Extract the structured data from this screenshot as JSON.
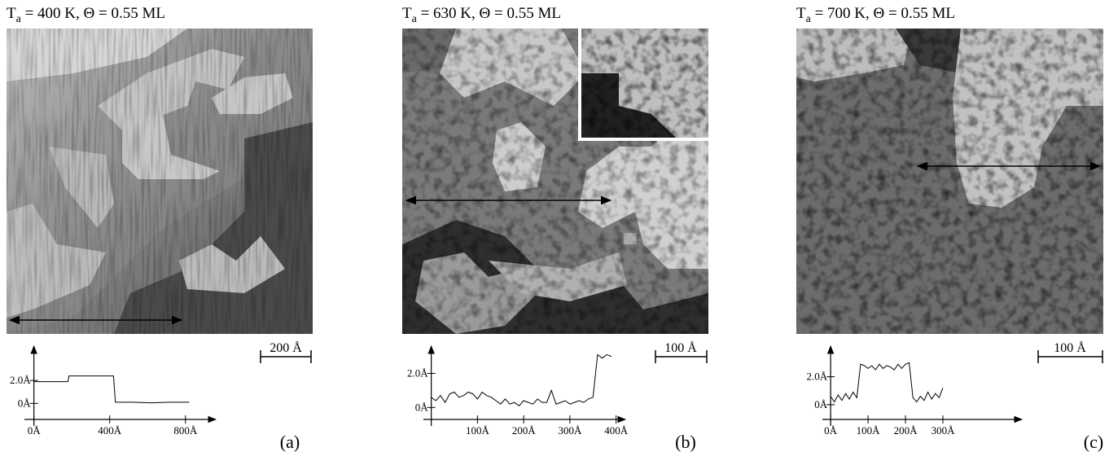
{
  "panels": [
    {
      "title": {
        "main": "T",
        "sub": "a",
        "rest": " = 400 K,   Θ = 0.55 ML"
      },
      "scale_bar": "200 Å",
      "label": "(a)",
      "profile": {
        "type": "line",
        "xlim": [
          -50,
          960
        ],
        "ylim": [
          -1.4,
          5
        ],
        "xticks": [
          {
            "value": 0,
            "label": "0Å"
          },
          {
            "value": 400,
            "label": "400Å"
          },
          {
            "value": 800,
            "label": "800Å"
          }
        ],
        "yticks": [
          {
            "value": 0,
            "label": "0Å"
          },
          {
            "value": 2,
            "label": "2.0Å"
          }
        ],
        "x": [
          0,
          60,
          120,
          180,
          185,
          250,
          320,
          420,
          430,
          520,
          620,
          720,
          820
        ],
        "values": [
          1.9,
          1.9,
          1.9,
          1.9,
          2.4,
          2.4,
          2.4,
          2.4,
          0.1,
          0.1,
          0.05,
          0.1,
          0.1
        ]
      }
    },
    {
      "title": {
        "main": "T",
        "sub": "a",
        "rest": " = 630 K,   Θ = 0.55 ML"
      },
      "scale_bar": "100 Å",
      "label": "(b)",
      "profile": {
        "type": "line",
        "xlim": [
          -17,
          420
        ],
        "ylim": [
          -0.7,
          3.6
        ],
        "xticks": [
          {
            "value": 100,
            "label": "100Å"
          },
          {
            "value": 200,
            "label": "200Å"
          },
          {
            "value": 300,
            "label": "300Å"
          },
          {
            "value": 400,
            "label": "400Å"
          }
        ],
        "yticks": [
          {
            "value": 0,
            "label": "0Å"
          },
          {
            "value": 2,
            "label": "2.0Å"
          }
        ],
        "x": [
          0,
          10,
          20,
          30,
          40,
          50,
          60,
          70,
          80,
          90,
          100,
          110,
          120,
          130,
          140,
          150,
          160,
          170,
          180,
          190,
          200,
          210,
          220,
          230,
          240,
          250,
          260,
          270,
          280,
          290,
          300,
          310,
          320,
          330,
          340,
          350,
          360,
          370,
          380,
          390
        ],
        "values": [
          0.6,
          0.4,
          0.7,
          0.3,
          0.8,
          0.9,
          0.6,
          0.7,
          0.9,
          0.8,
          0.5,
          0.9,
          0.7,
          0.6,
          0.4,
          0.2,
          0.5,
          0.2,
          0.3,
          0.1,
          0.4,
          0.3,
          0.2,
          0.5,
          0.3,
          0.3,
          1.0,
          0.2,
          0.3,
          0.4,
          0.2,
          0.3,
          0.4,
          0.3,
          0.5,
          0.6,
          3.1,
          2.9,
          3.1,
          3.0
        ]
      }
    },
    {
      "title": {
        "main": "T",
        "sub": "a",
        "rest": " = 700 K,   Θ = 0.55 ML"
      },
      "scale_bar": "100 Å",
      "label": "(c)",
      "profile": {
        "type": "line",
        "xlim": [
          -22,
          511
        ],
        "ylim": [
          -1.06,
          4.2
        ],
        "xticks": [
          {
            "value": 0,
            "label": "0Å"
          },
          {
            "value": 100,
            "label": "100Å"
          },
          {
            "value": 200,
            "label": "200Å"
          },
          {
            "value": 300,
            "label": "300Å"
          }
        ],
        "yticks": [
          {
            "value": 0,
            "label": "0Å"
          },
          {
            "value": 2,
            "label": "2.0Å"
          }
        ],
        "x": [
          0,
          10,
          20,
          30,
          40,
          50,
          60,
          70,
          80,
          90,
          100,
          110,
          120,
          130,
          140,
          150,
          160,
          170,
          180,
          190,
          200,
          210,
          220,
          230,
          240,
          250,
          260,
          270,
          280,
          290,
          300
        ],
        "values": [
          0.6,
          0.2,
          0.7,
          0.3,
          0.8,
          0.4,
          0.9,
          0.5,
          2.9,
          2.8,
          2.6,
          2.8,
          2.5,
          2.9,
          2.6,
          2.8,
          2.7,
          2.5,
          2.9,
          2.6,
          2.9,
          3.0,
          0.5,
          0.2,
          0.6,
          0.3,
          0.9,
          0.4,
          0.8,
          0.5,
          1.2
        ]
      }
    }
  ]
}
